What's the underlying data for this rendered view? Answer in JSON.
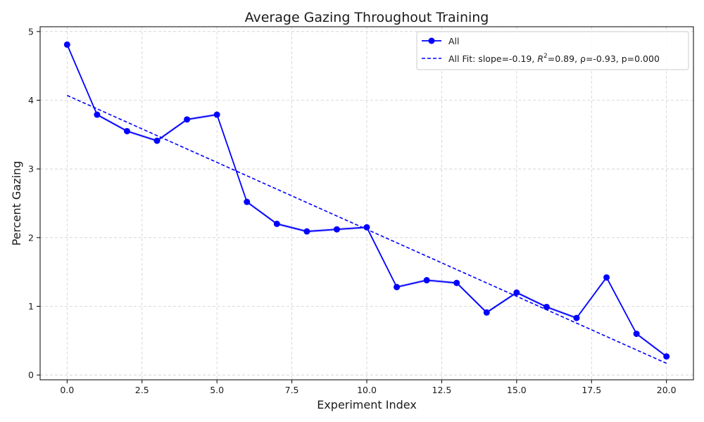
{
  "chart_data": {
    "type": "line",
    "title": "Average Gazing Throughout Training",
    "xlabel": "Experiment Index",
    "ylabel": "Percent Gazing",
    "xlim": [
      -0.9,
      20.9
    ],
    "ylim": [
      -0.07,
      5.07
    ],
    "xticks": [
      0.0,
      2.5,
      5.0,
      7.5,
      10.0,
      12.5,
      15.0,
      17.5,
      20.0
    ],
    "xtick_labels": [
      "0.0",
      "2.5",
      "5.0",
      "7.5",
      "10.0",
      "12.5",
      "15.0",
      "17.5",
      "20.0"
    ],
    "yticks": [
      0,
      1,
      2,
      3,
      4,
      5
    ],
    "ytick_labels": [
      "0",
      "1",
      "2",
      "3",
      "4",
      "5"
    ],
    "grid": true,
    "legend_position": "top-right",
    "series": [
      {
        "name": "All",
        "color": "#0000ff",
        "style": "solid-with-markers",
        "x": [
          0,
          1,
          2,
          3,
          4,
          5,
          6,
          7,
          8,
          9,
          10,
          11,
          12,
          13,
          14,
          15,
          16,
          17,
          18,
          19,
          20
        ],
        "y": [
          4.81,
          3.79,
          3.55,
          3.41,
          3.72,
          3.79,
          2.52,
          2.2,
          2.09,
          2.12,
          2.15,
          1.28,
          1.38,
          1.34,
          0.91,
          1.2,
          0.99,
          0.83,
          1.42,
          0.6,
          0.27
        ]
      },
      {
        "name_prefix": "All Fit: slope=-0.19, ",
        "r2_symbol": "R",
        "r2_exponent": "2",
        "name_suffix": "=0.89, ρ=-0.93, p=0.000",
        "color": "#0000ff",
        "style": "dashed",
        "x": [
          0,
          20
        ],
        "y": [
          4.07,
          0.17
        ]
      }
    ]
  }
}
